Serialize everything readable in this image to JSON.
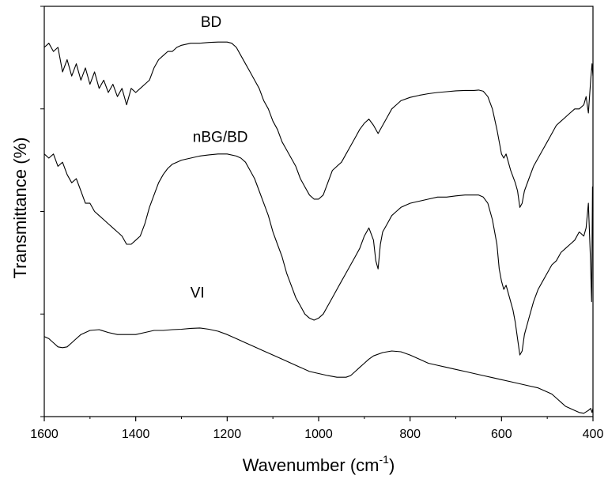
{
  "chart_data": {
    "type": "line",
    "xlabel": "Wavenumber (cm",
    "xlabel_sup": "-1",
    "xlabel_close": ")",
    "ylabel": "Transmittance (%)",
    "xlim": [
      1600,
      400
    ],
    "x_reversed": true,
    "ylim": [
      0,
      100
    ],
    "x_ticks": [
      1600,
      1400,
      1200,
      1000,
      800,
      600,
      400
    ],
    "y_ticks_labeled": false,
    "grid": false,
    "legend": "none",
    "series": [
      {
        "name": "BD",
        "label_at": [
          1235,
          95
        ],
        "points": [
          [
            1600,
            90
          ],
          [
            1590,
            91
          ],
          [
            1580,
            89
          ],
          [
            1570,
            90
          ],
          [
            1560,
            84
          ],
          [
            1550,
            87
          ],
          [
            1540,
            83
          ],
          [
            1530,
            86
          ],
          [
            1520,
            82
          ],
          [
            1510,
            85
          ],
          [
            1500,
            81
          ],
          [
            1490,
            84
          ],
          [
            1480,
            80
          ],
          [
            1470,
            82
          ],
          [
            1460,
            79
          ],
          [
            1450,
            81
          ],
          [
            1440,
            78
          ],
          [
            1430,
            80
          ],
          [
            1420,
            76
          ],
          [
            1410,
            80
          ],
          [
            1400,
            79
          ],
          [
            1390,
            80
          ],
          [
            1380,
            81
          ],
          [
            1370,
            82
          ],
          [
            1360,
            85
          ],
          [
            1350,
            87
          ],
          [
            1340,
            88
          ],
          [
            1330,
            89
          ],
          [
            1320,
            89
          ],
          [
            1310,
            90
          ],
          [
            1300,
            90.5
          ],
          [
            1280,
            91
          ],
          [
            1260,
            91
          ],
          [
            1240,
            91.2
          ],
          [
            1220,
            91.3
          ],
          [
            1200,
            91.3
          ],
          [
            1190,
            91
          ],
          [
            1180,
            90
          ],
          [
            1170,
            88
          ],
          [
            1160,
            86
          ],
          [
            1150,
            84
          ],
          [
            1140,
            82
          ],
          [
            1130,
            80
          ],
          [
            1120,
            77
          ],
          [
            1110,
            75
          ],
          [
            1100,
            72
          ],
          [
            1090,
            70
          ],
          [
            1080,
            67
          ],
          [
            1070,
            65
          ],
          [
            1060,
            63
          ],
          [
            1050,
            61
          ],
          [
            1040,
            58
          ],
          [
            1030,
            56
          ],
          [
            1020,
            54
          ],
          [
            1010,
            53
          ],
          [
            1000,
            53
          ],
          [
            990,
            54
          ],
          [
            980,
            57
          ],
          [
            970,
            60
          ],
          [
            960,
            61
          ],
          [
            950,
            62
          ],
          [
            940,
            64
          ],
          [
            930,
            66
          ],
          [
            920,
            68
          ],
          [
            910,
            70
          ],
          [
            900,
            71.5
          ],
          [
            890,
            72.5
          ],
          [
            880,
            71
          ],
          [
            870,
            69
          ],
          [
            860,
            71
          ],
          [
            850,
            73
          ],
          [
            840,
            75
          ],
          [
            830,
            76
          ],
          [
            820,
            77
          ],
          [
            800,
            77.8
          ],
          [
            780,
            78.3
          ],
          [
            760,
            78.7
          ],
          [
            740,
            79
          ],
          [
            720,
            79.2
          ],
          [
            700,
            79.4
          ],
          [
            680,
            79.5
          ],
          [
            660,
            79.5
          ],
          [
            650,
            79.6
          ],
          [
            640,
            79.3
          ],
          [
            630,
            78
          ],
          [
            620,
            75
          ],
          [
            610,
            70
          ],
          [
            600,
            64
          ],
          [
            595,
            63
          ],
          [
            590,
            64
          ],
          [
            585,
            62
          ],
          [
            580,
            60
          ],
          [
            570,
            57
          ],
          [
            565,
            55
          ],
          [
            560,
            51
          ],
          [
            555,
            52
          ],
          [
            550,
            55
          ],
          [
            540,
            58
          ],
          [
            530,
            61
          ],
          [
            520,
            63
          ],
          [
            510,
            65
          ],
          [
            500,
            67
          ],
          [
            490,
            69
          ],
          [
            480,
            71
          ],
          [
            470,
            72
          ],
          [
            460,
            73
          ],
          [
            450,
            74
          ],
          [
            440,
            75
          ],
          [
            430,
            75
          ],
          [
            420,
            76
          ],
          [
            415,
            78
          ],
          [
            410,
            74
          ],
          [
            405,
            82
          ],
          [
            402,
            86
          ],
          [
            400,
            83
          ]
        ]
      },
      {
        "name": "nBG/BD",
        "label_at": [
          1215,
          67
        ],
        "points": [
          [
            1600,
            64
          ],
          [
            1590,
            63
          ],
          [
            1580,
            64
          ],
          [
            1570,
            61
          ],
          [
            1560,
            62
          ],
          [
            1550,
            59
          ],
          [
            1540,
            57
          ],
          [
            1530,
            58
          ],
          [
            1520,
            55
          ],
          [
            1510,
            52
          ],
          [
            1500,
            52
          ],
          [
            1490,
            50
          ],
          [
            1480,
            49
          ],
          [
            1470,
            48
          ],
          [
            1460,
            47
          ],
          [
            1450,
            46
          ],
          [
            1440,
            45
          ],
          [
            1430,
            44
          ],
          [
            1420,
            42
          ],
          [
            1410,
            42
          ],
          [
            1400,
            43
          ],
          [
            1390,
            44
          ],
          [
            1380,
            47
          ],
          [
            1370,
            51
          ],
          [
            1360,
            54
          ],
          [
            1350,
            57
          ],
          [
            1340,
            59
          ],
          [
            1330,
            60.5
          ],
          [
            1320,
            61.5
          ],
          [
            1310,
            62
          ],
          [
            1300,
            62.5
          ],
          [
            1280,
            63
          ],
          [
            1260,
            63.5
          ],
          [
            1240,
            63.8
          ],
          [
            1220,
            64
          ],
          [
            1200,
            64
          ],
          [
            1180,
            63.5
          ],
          [
            1170,
            63
          ],
          [
            1160,
            62
          ],
          [
            1150,
            60
          ],
          [
            1140,
            58
          ],
          [
            1130,
            55
          ],
          [
            1120,
            52
          ],
          [
            1110,
            49
          ],
          [
            1100,
            45
          ],
          [
            1090,
            42
          ],
          [
            1080,
            39
          ],
          [
            1070,
            35
          ],
          [
            1060,
            32
          ],
          [
            1050,
            29
          ],
          [
            1040,
            27
          ],
          [
            1030,
            25
          ],
          [
            1020,
            24
          ],
          [
            1010,
            23.5
          ],
          [
            1000,
            24
          ],
          [
            990,
            25
          ],
          [
            980,
            27
          ],
          [
            970,
            29
          ],
          [
            960,
            31
          ],
          [
            950,
            33
          ],
          [
            940,
            35
          ],
          [
            930,
            37
          ],
          [
            920,
            39
          ],
          [
            910,
            41
          ],
          [
            900,
            44
          ],
          [
            890,
            46
          ],
          [
            880,
            43
          ],
          [
            875,
            38
          ],
          [
            870,
            36
          ],
          [
            865,
            42
          ],
          [
            860,
            45
          ],
          [
            850,
            47
          ],
          [
            840,
            49
          ],
          [
            830,
            50
          ],
          [
            820,
            51
          ],
          [
            800,
            52
          ],
          [
            780,
            52.5
          ],
          [
            760,
            53
          ],
          [
            740,
            53.5
          ],
          [
            720,
            53.5
          ],
          [
            700,
            53.8
          ],
          [
            680,
            54
          ],
          [
            660,
            54
          ],
          [
            650,
            54
          ],
          [
            640,
            53.5
          ],
          [
            630,
            52
          ],
          [
            620,
            48
          ],
          [
            610,
            42
          ],
          [
            605,
            36
          ],
          [
            600,
            33
          ],
          [
            595,
            31
          ],
          [
            590,
            32
          ],
          [
            585,
            30
          ],
          [
            580,
            28
          ],
          [
            575,
            26
          ],
          [
            570,
            23
          ],
          [
            565,
            19
          ],
          [
            560,
            15
          ],
          [
            555,
            16
          ],
          [
            550,
            20
          ],
          [
            540,
            24
          ],
          [
            530,
            28
          ],
          [
            520,
            31
          ],
          [
            510,
            33
          ],
          [
            500,
            35
          ],
          [
            490,
            37
          ],
          [
            480,
            38
          ],
          [
            470,
            40
          ],
          [
            460,
            41
          ],
          [
            450,
            42
          ],
          [
            440,
            43
          ],
          [
            430,
            45
          ],
          [
            420,
            44
          ],
          [
            415,
            46
          ],
          [
            410,
            52
          ],
          [
            406,
            40
          ],
          [
            403,
            28
          ],
          [
            401,
            56
          ],
          [
            400,
            50
          ]
        ]
      },
      {
        "name": "VI",
        "label_at": [
          1265,
          29
        ],
        "points": [
          [
            1600,
            19.5
          ],
          [
            1590,
            19
          ],
          [
            1580,
            18
          ],
          [
            1570,
            17
          ],
          [
            1560,
            16.8
          ],
          [
            1550,
            17
          ],
          [
            1540,
            18
          ],
          [
            1530,
            19
          ],
          [
            1520,
            20
          ],
          [
            1500,
            21
          ],
          [
            1480,
            21.2
          ],
          [
            1460,
            20.5
          ],
          [
            1440,
            20
          ],
          [
            1420,
            20
          ],
          [
            1400,
            20
          ],
          [
            1380,
            20.5
          ],
          [
            1360,
            21
          ],
          [
            1340,
            21
          ],
          [
            1320,
            21.2
          ],
          [
            1300,
            21.3
          ],
          [
            1280,
            21.5
          ],
          [
            1260,
            21.6
          ],
          [
            1240,
            21.3
          ],
          [
            1220,
            20.8
          ],
          [
            1200,
            20
          ],
          [
            1180,
            19
          ],
          [
            1160,
            18
          ],
          [
            1140,
            17
          ],
          [
            1120,
            16
          ],
          [
            1100,
            15
          ],
          [
            1080,
            14
          ],
          [
            1060,
            13
          ],
          [
            1040,
            12
          ],
          [
            1020,
            11
          ],
          [
            1000,
            10.5
          ],
          [
            980,
            10
          ],
          [
            960,
            9.6
          ],
          [
            940,
            9.6
          ],
          [
            930,
            10
          ],
          [
            920,
            11
          ],
          [
            910,
            12
          ],
          [
            900,
            13
          ],
          [
            890,
            14
          ],
          [
            880,
            14.8
          ],
          [
            860,
            15.6
          ],
          [
            840,
            16
          ],
          [
            820,
            15.8
          ],
          [
            800,
            15
          ],
          [
            780,
            14
          ],
          [
            760,
            13
          ],
          [
            740,
            12.5
          ],
          [
            720,
            12
          ],
          [
            700,
            11.5
          ],
          [
            680,
            11
          ],
          [
            660,
            10.5
          ],
          [
            640,
            10
          ],
          [
            620,
            9.5
          ],
          [
            600,
            9
          ],
          [
            580,
            8.5
          ],
          [
            560,
            8
          ],
          [
            540,
            7.5
          ],
          [
            520,
            7
          ],
          [
            500,
            6
          ],
          [
            490,
            5.5
          ],
          [
            480,
            4.5
          ],
          [
            470,
            3.5
          ],
          [
            460,
            2.5
          ],
          [
            450,
            2
          ],
          [
            440,
            1.5
          ],
          [
            430,
            1
          ],
          [
            420,
            0.8
          ],
          [
            410,
            1.5
          ],
          [
            405,
            2
          ],
          [
            402,
            1
          ],
          [
            400,
            2
          ]
        ]
      }
    ]
  }
}
